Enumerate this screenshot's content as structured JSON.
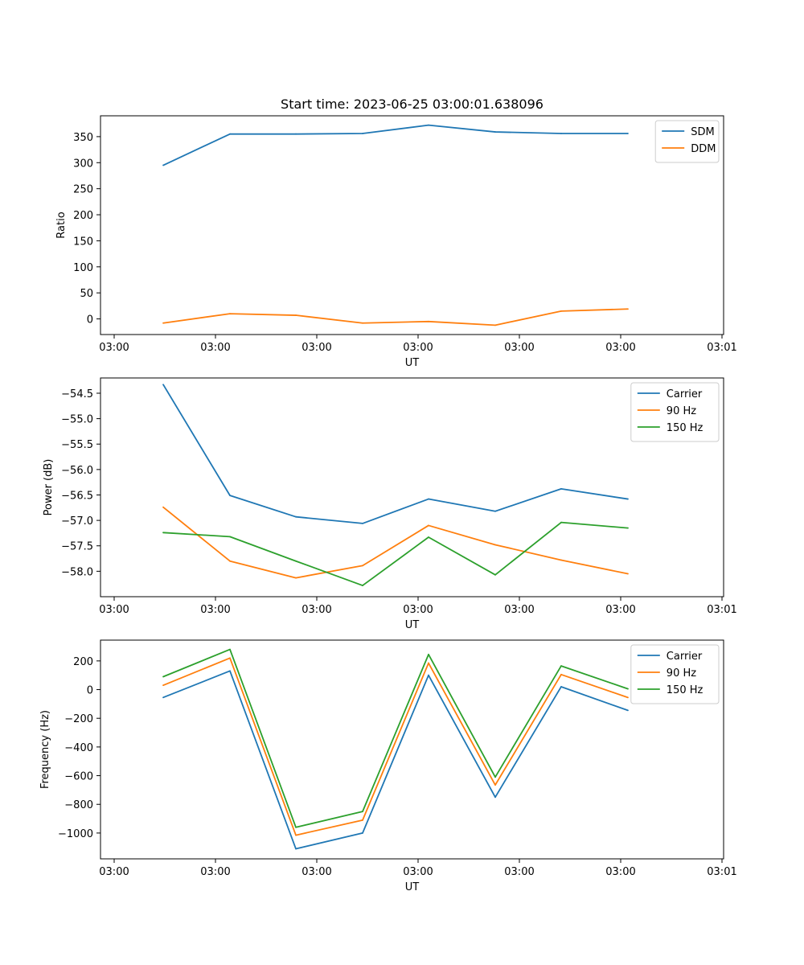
{
  "chart_data": [
    {
      "type": "line",
      "title": "Start time: 2023-06-25 03:00:01.638096",
      "xlabel": "UT",
      "ylabel": "Ratio",
      "x_tick_labels": [
        "03:00",
        "03:00",
        "03:00",
        "03:00",
        "03:00",
        "03:00",
        "03:01"
      ],
      "y_ticks": [
        "0",
        "50",
        "100",
        "150",
        "200",
        "250",
        "300",
        "350"
      ],
      "ylim": [
        -30,
        390
      ],
      "legend_position": "top-right",
      "series": [
        {
          "name": "SDM",
          "color": "#1f77b4",
          "values": [
            295,
            355,
            355,
            356,
            372,
            359,
            356,
            356
          ]
        },
        {
          "name": "DDM",
          "color": "#ff7f0e",
          "values": [
            -8,
            10,
            7,
            -8,
            -5,
            -12,
            15,
            19
          ]
        }
      ]
    },
    {
      "type": "line",
      "title": "",
      "xlabel": "UT",
      "ylabel": "Power (dB)",
      "x_tick_labels": [
        "03:00",
        "03:00",
        "03:00",
        "03:00",
        "03:00",
        "03:00",
        "03:01"
      ],
      "y_ticks": [
        "−58.0",
        "−57.5",
        "−57.0",
        "−56.5",
        "−56.0",
        "−55.5",
        "−55.0",
        "−54.5"
      ],
      "ylim": [
        -58.5,
        -54.2
      ],
      "legend_position": "top-right",
      "series": [
        {
          "name": "Carrier",
          "color": "#1f77b4",
          "values": [
            -54.33,
            -56.51,
            -56.93,
            -57.06,
            -56.58,
            -56.82,
            -56.38,
            -56.58
          ]
        },
        {
          "name": "90 Hz",
          "color": "#ff7f0e",
          "values": [
            -56.74,
            -57.8,
            -58.13,
            -57.89,
            -57.1,
            -57.48,
            -57.78,
            -58.05
          ]
        },
        {
          "name": "150 Hz",
          "color": "#2ca02c",
          "values": [
            -57.24,
            -57.32,
            -57.8,
            -58.28,
            -57.33,
            -58.07,
            -57.04,
            -57.15
          ]
        }
      ]
    },
    {
      "type": "line",
      "title": "",
      "xlabel": "UT",
      "ylabel": "Frequency (Hz)",
      "x_tick_labels": [
        "03:00",
        "03:00",
        "03:00",
        "03:00",
        "03:00",
        "03:00",
        "03:01"
      ],
      "y_ticks": [
        "−1000",
        "−800",
        "−600",
        "−400",
        "−200",
        "0",
        "200"
      ],
      "ylim": [
        -1180,
        345
      ],
      "legend_position": "top-right",
      "series": [
        {
          "name": "Carrier",
          "color": "#1f77b4",
          "values": [
            -55,
            130,
            -1110,
            -1000,
            100,
            -750,
            20,
            -145
          ]
        },
        {
          "name": "90 Hz",
          "color": "#ff7f0e",
          "values": [
            30,
            220,
            -1015,
            -910,
            185,
            -665,
            105,
            -55
          ]
        },
        {
          "name": "150 Hz",
          "color": "#2ca02c",
          "values": [
            90,
            280,
            -960,
            -850,
            245,
            -610,
            165,
            5
          ]
        }
      ]
    }
  ]
}
